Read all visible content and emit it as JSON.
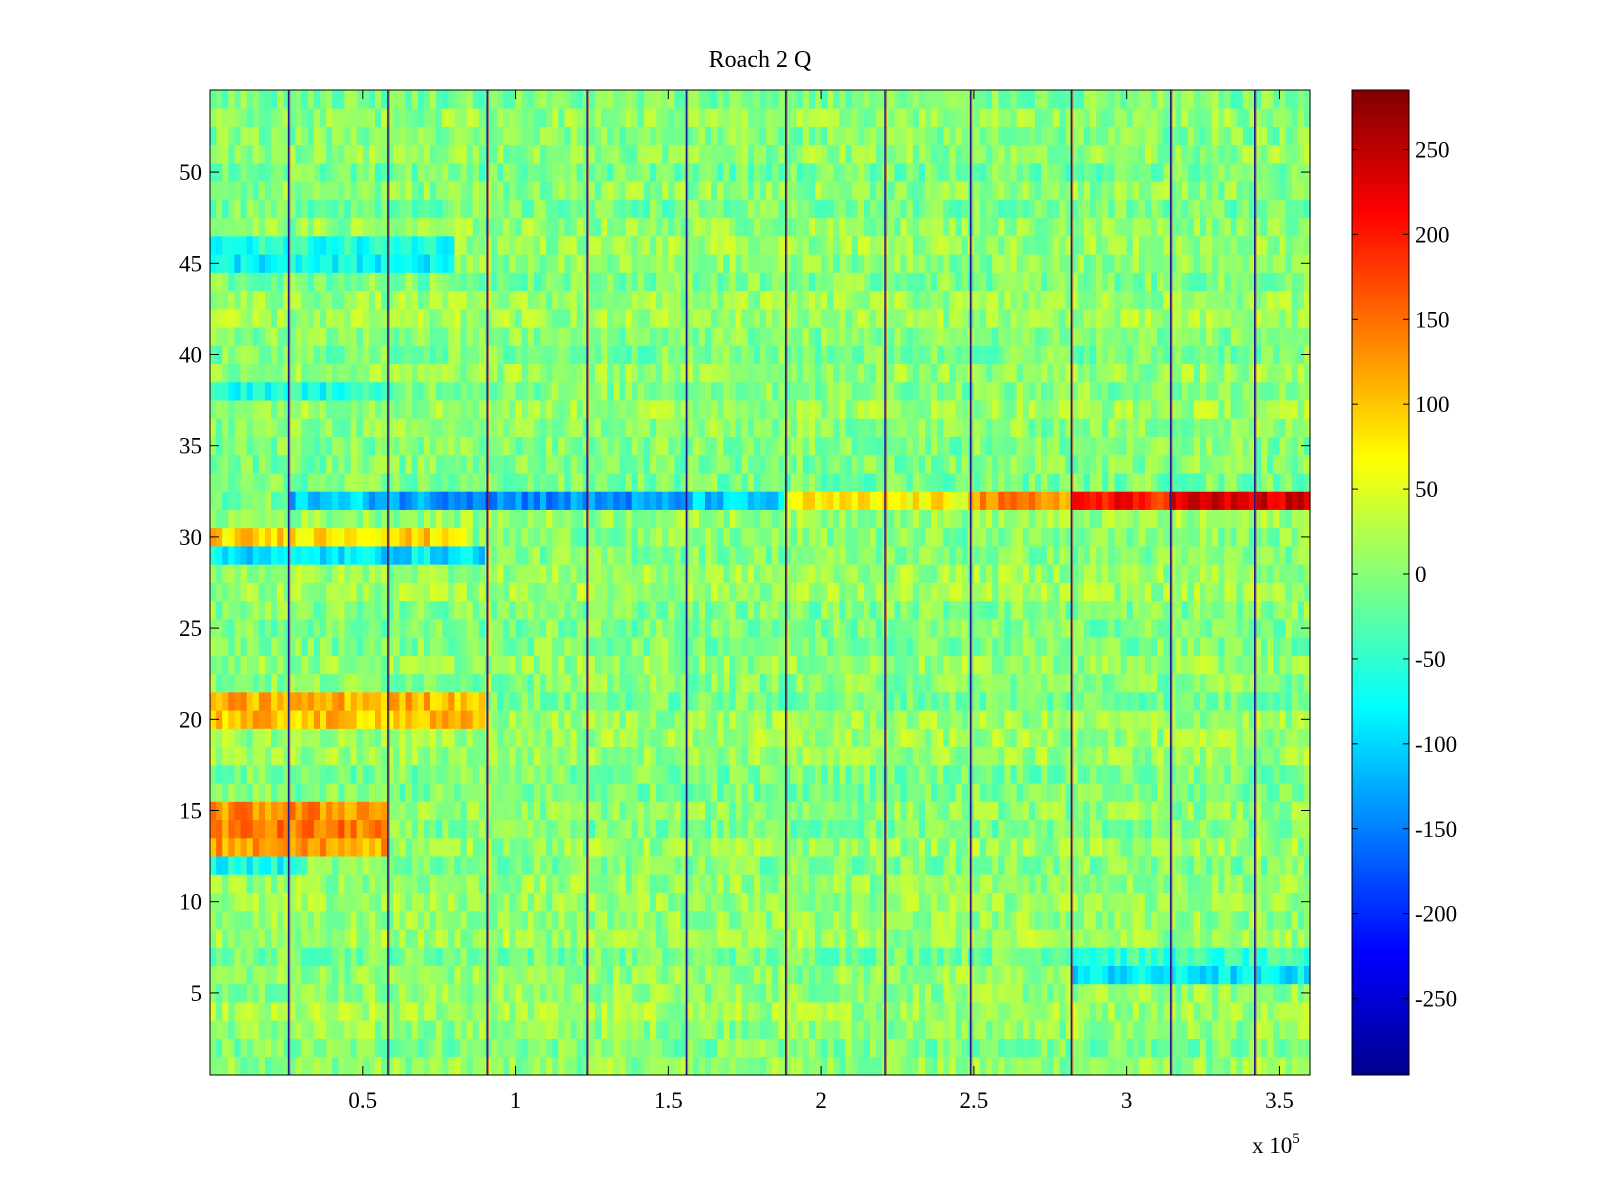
{
  "chart_data": {
    "type": "heatmap",
    "title": "Roach 2 Q",
    "xlabel": "",
    "ylabel": "",
    "x_exponent_label": "x 10",
    "x_exponent_power": "5",
    "xlim": [
      0,
      360000
    ],
    "ylim": [
      0.5,
      54.5
    ],
    "x_ticks": [
      50000,
      100000,
      150000,
      200000,
      250000,
      300000,
      350000
    ],
    "x_tick_labels": [
      "0.5",
      "1",
      "1.5",
      "2",
      "2.5",
      "3",
      "3.5"
    ],
    "y_ticks": [
      5,
      10,
      15,
      20,
      25,
      30,
      35,
      40,
      45,
      50
    ],
    "y_tick_labels": [
      "5",
      "10",
      "15",
      "20",
      "25",
      "30",
      "35",
      "40",
      "45",
      "50"
    ],
    "clim": [
      -295,
      285
    ],
    "colorbar_ticks": [
      250,
      200,
      150,
      100,
      50,
      0,
      -50,
      -100,
      -150,
      -200,
      -250
    ],
    "colorbar_tick_labels": [
      "250",
      "200",
      "150",
      "100",
      "50",
      "0",
      "-50",
      "-100",
      "-150",
      "-200",
      "-250"
    ],
    "colormap": "jet",
    "rows": 54,
    "vertical_stripe_x": [
      25800,
      58300,
      90800,
      123500,
      156000,
      188500,
      221000,
      249000,
      282000,
      314500,
      342000
    ],
    "notable_rows": [
      {
        "row": 32,
        "segments": [
          {
            "x": [
              26000,
              60000
            ],
            "value": -110
          },
          {
            "x": [
              60000,
              90000
            ],
            "value": -130
          },
          {
            "x": [
              90000,
              156000
            ],
            "value": -140
          },
          {
            "x": [
              156000,
              188000
            ],
            "value": -110
          },
          {
            "x": [
              188000,
              249000
            ],
            "value": 70
          },
          {
            "x": [
              249000,
              282000
            ],
            "value": 130
          },
          {
            "x": [
              282000,
              314000
            ],
            "value": 200
          },
          {
            "x": [
              314000,
              360000
            ],
            "value": 230
          }
        ]
      },
      {
        "row": 29,
        "segments": [
          {
            "x": [
              0,
              90000
            ],
            "value": -90
          }
        ]
      },
      {
        "row": 30,
        "segments": [
          {
            "x": [
              0,
              85000
            ],
            "value": 90
          }
        ]
      },
      {
        "row": 14,
        "segments": [
          {
            "x": [
              0,
              58000
            ],
            "value": 140
          }
        ]
      },
      {
        "row": 15,
        "segments": [
          {
            "x": [
              0,
              58000
            ],
            "value": 130
          }
        ]
      },
      {
        "row": 13,
        "segments": [
          {
            "x": [
              0,
              58000
            ],
            "value": 120
          }
        ]
      },
      {
        "row": 20,
        "segments": [
          {
            "x": [
              0,
              90000
            ],
            "value": 100
          }
        ]
      },
      {
        "row": 21,
        "segments": [
          {
            "x": [
              0,
              90000
            ],
            "value": 110
          }
        ]
      },
      {
        "row": 6,
        "segments": [
          {
            "x": [
              282000,
              360000
            ],
            "value": -90
          }
        ]
      },
      {
        "row": 7,
        "segments": [
          {
            "x": [
              282000,
              360000
            ],
            "value": -50
          }
        ]
      },
      {
        "row": 12,
        "segments": [
          {
            "x": [
              0,
              30000
            ],
            "value": -70
          }
        ]
      },
      {
        "row": 45,
        "segments": [
          {
            "x": [
              0,
              80000
            ],
            "value": -80
          }
        ]
      },
      {
        "row": 46,
        "segments": [
          {
            "x": [
              0,
              80000
            ],
            "value": -60
          }
        ]
      },
      {
        "row": 38,
        "segments": [
          {
            "x": [
              0,
              60000
            ],
            "value": -60
          }
        ]
      }
    ]
  }
}
